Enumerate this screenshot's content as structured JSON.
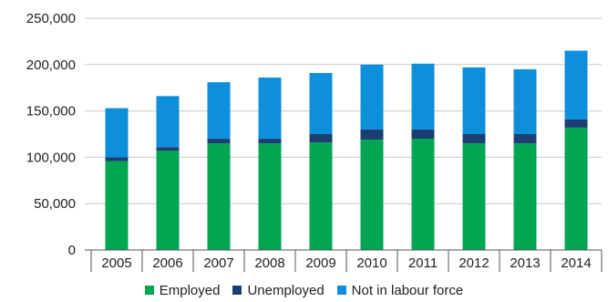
{
  "chart_data": {
    "type": "bar",
    "stacked": true,
    "categories": [
      "2005",
      "2006",
      "2007",
      "2008",
      "2009",
      "2010",
      "2011",
      "2012",
      "2013",
      "2014"
    ],
    "series": [
      {
        "name": "Employed",
        "color": "#00a651",
        "values": [
          96000,
          107000,
          115000,
          115000,
          116000,
          119000,
          120000,
          115000,
          115000,
          132000
        ]
      },
      {
        "name": "Unemployed",
        "color": "#1b3f73",
        "values": [
          4000,
          4000,
          5000,
          5000,
          9000,
          11000,
          10000,
          10000,
          10000,
          9000
        ]
      },
      {
        "name": "Not in labour force",
        "color": "#0e8fdc",
        "values": [
          53000,
          55000,
          61000,
          66000,
          66000,
          70000,
          71000,
          72000,
          70000,
          74000
        ]
      }
    ],
    "ylim": [
      0,
      250000
    ],
    "y_ticks": [
      "0",
      "50,000",
      "100,000",
      "150,000",
      "200,000",
      "250,000"
    ],
    "y_tick_values": [
      0,
      50000,
      100000,
      150000,
      200000,
      250000
    ],
    "grid": true,
    "legend_position": "bottom"
  }
}
